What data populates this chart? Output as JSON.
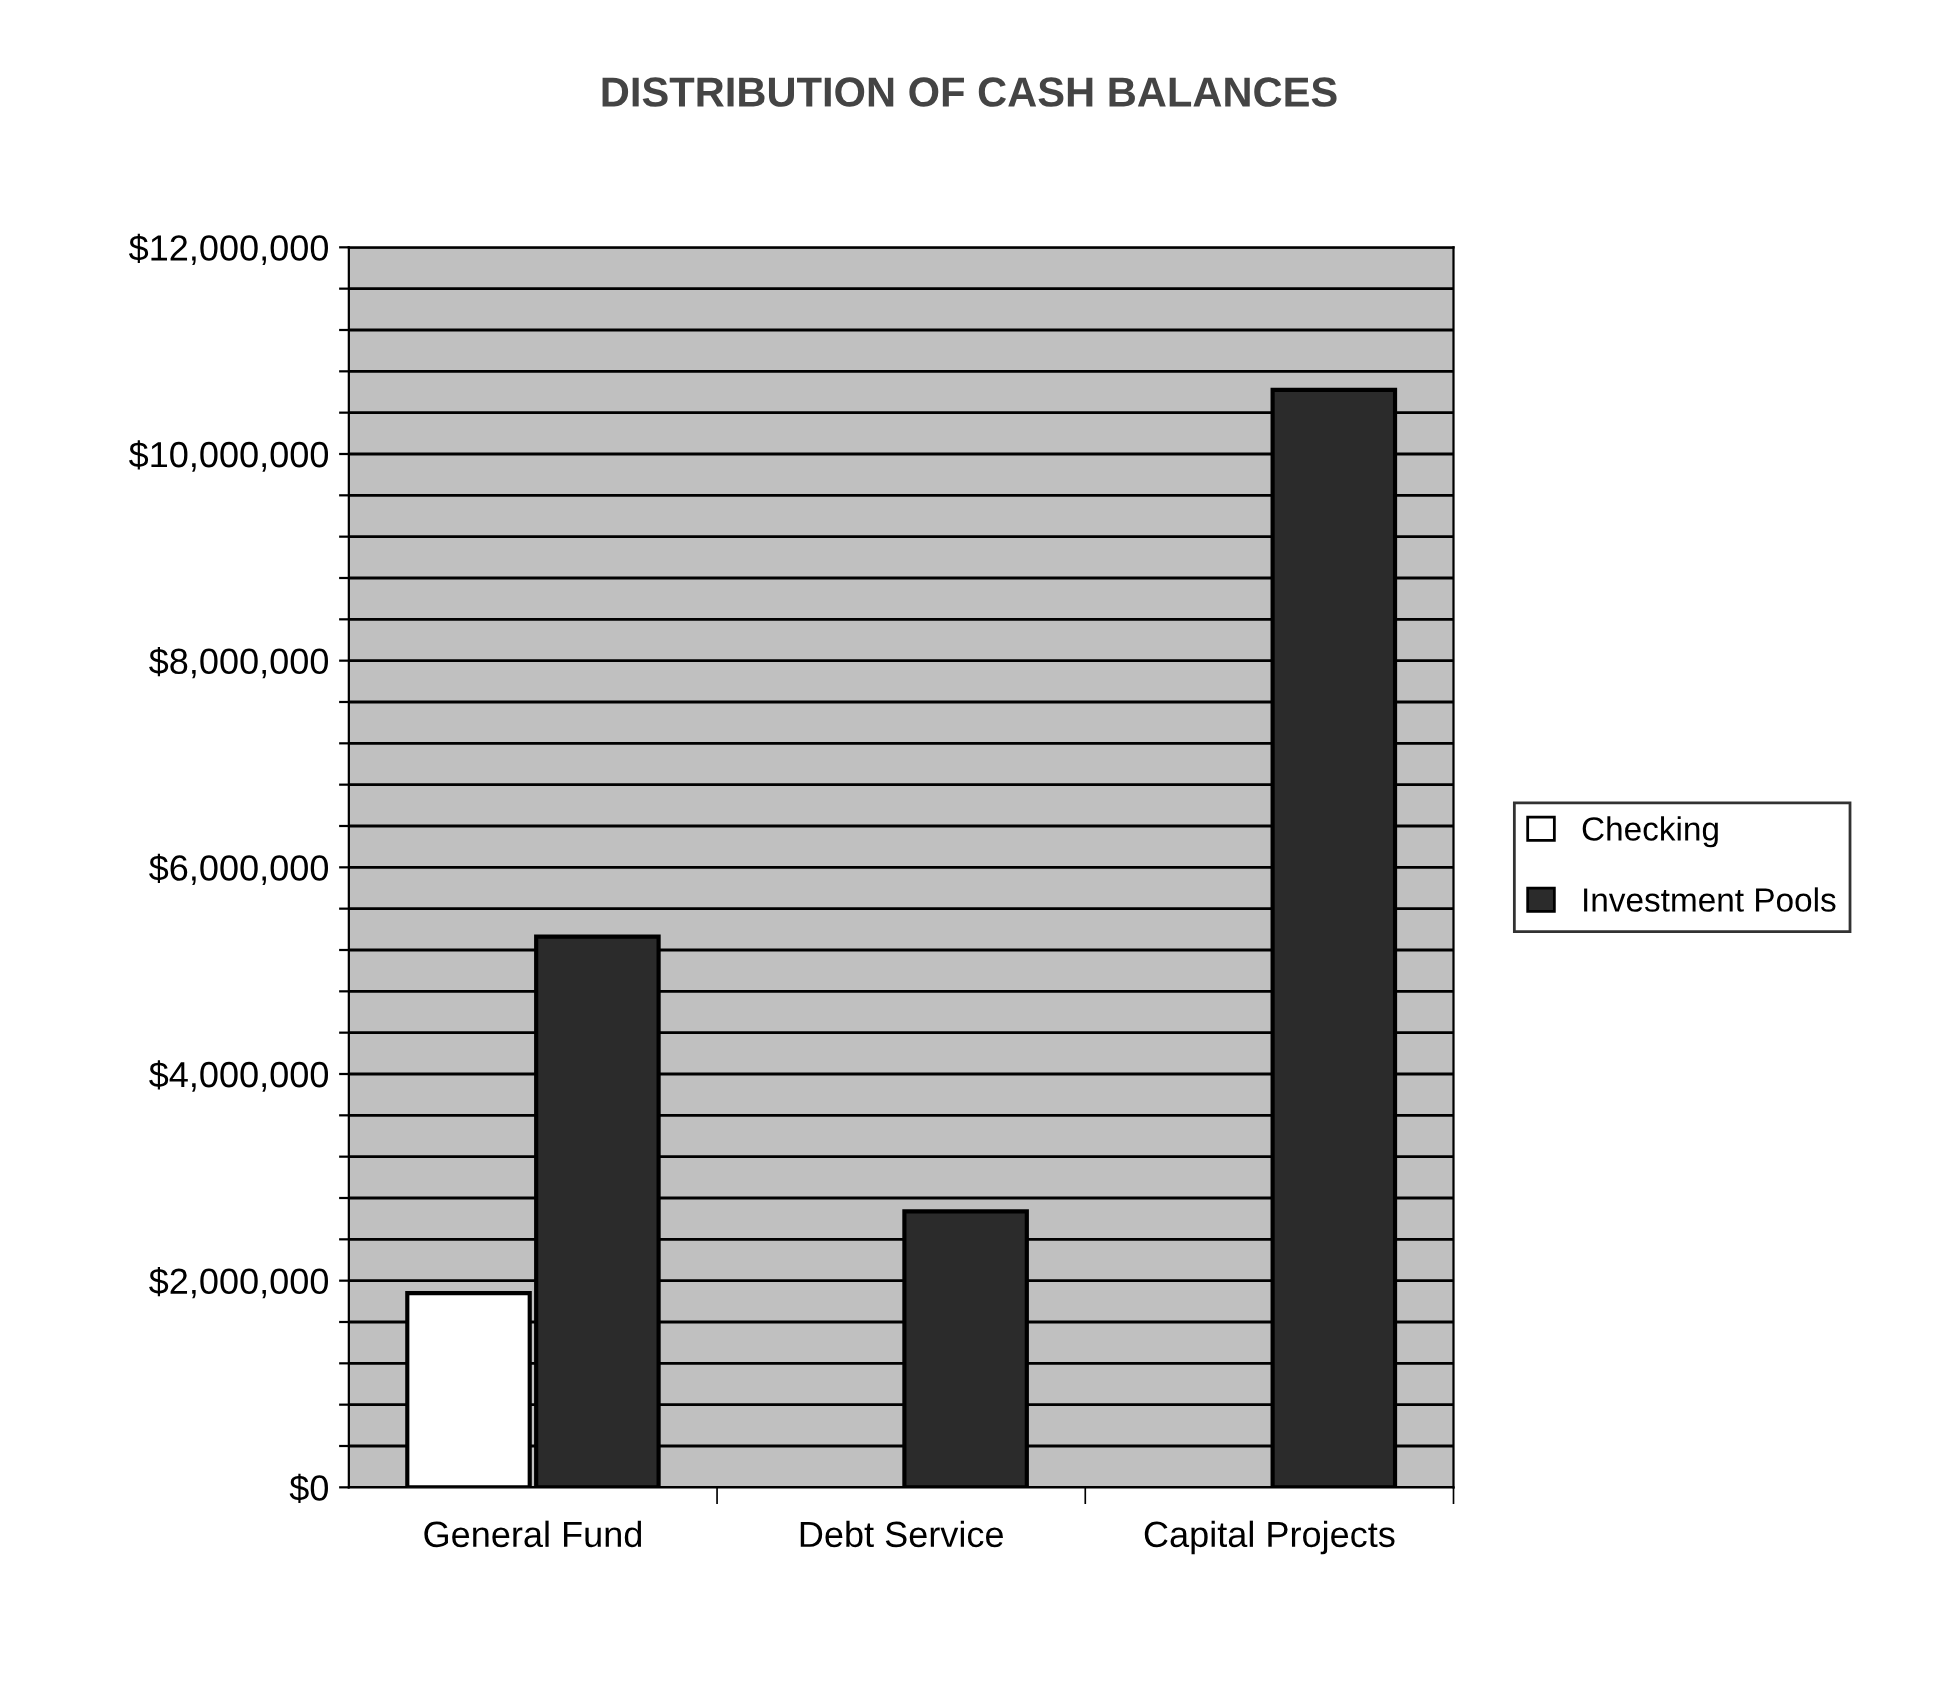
{
  "chart_data": {
    "type": "bar",
    "title": "DISTRIBUTION OF CASH BALANCES",
    "categories": [
      "General Fund",
      "Debt Service",
      "Capital Projects"
    ],
    "series": [
      {
        "name": "Checking",
        "color": "#ffffff",
        "values": [
          1880000,
          null,
          null
        ]
      },
      {
        "name": "Investment Pools",
        "color": "#2b2b2b",
        "values": [
          5330000,
          2670000,
          10620000
        ]
      }
    ],
    "ylim": [
      0,
      12000000
    ],
    "yticks": [
      {
        "value": 0,
        "label": "$0"
      },
      {
        "value": 400000,
        "label": null
      },
      {
        "value": 800000,
        "label": null
      },
      {
        "value": 1200000,
        "label": null
      },
      {
        "value": 1600000,
        "label": null
      },
      {
        "value": 2000000,
        "label": "$2,000,000"
      },
      {
        "value": 2400000,
        "label": null
      },
      {
        "value": 2800000,
        "label": null
      },
      {
        "value": 3200000,
        "label": null
      },
      {
        "value": 3600000,
        "label": null
      },
      {
        "value": 4000000,
        "label": "$4,000,000"
      },
      {
        "value": 4400000,
        "label": null
      },
      {
        "value": 4800000,
        "label": null
      },
      {
        "value": 5200000,
        "label": null
      },
      {
        "value": 5600000,
        "label": null
      },
      {
        "value": 6000000,
        "label": "$6,000,000"
      },
      {
        "value": 6400000,
        "label": null
      },
      {
        "value": 6800000,
        "label": null
      },
      {
        "value": 7200000,
        "label": null
      },
      {
        "value": 7600000,
        "label": null
      },
      {
        "value": 8000000,
        "label": "$8,000,000"
      },
      {
        "value": 8400000,
        "label": null
      },
      {
        "value": 8800000,
        "label": null
      },
      {
        "value": 9200000,
        "label": null
      },
      {
        "value": 9600000,
        "label": null
      },
      {
        "value": 10000000,
        "label": "$10,000,000"
      },
      {
        "value": 10400000,
        "label": null
      },
      {
        "value": 10800000,
        "label": null
      },
      {
        "value": 11200000,
        "label": null
      },
      {
        "value": 11600000,
        "label": null
      },
      {
        "value": 12000000,
        "label": "$12,000,000"
      }
    ],
    "grid": "y",
    "legend": "right"
  }
}
